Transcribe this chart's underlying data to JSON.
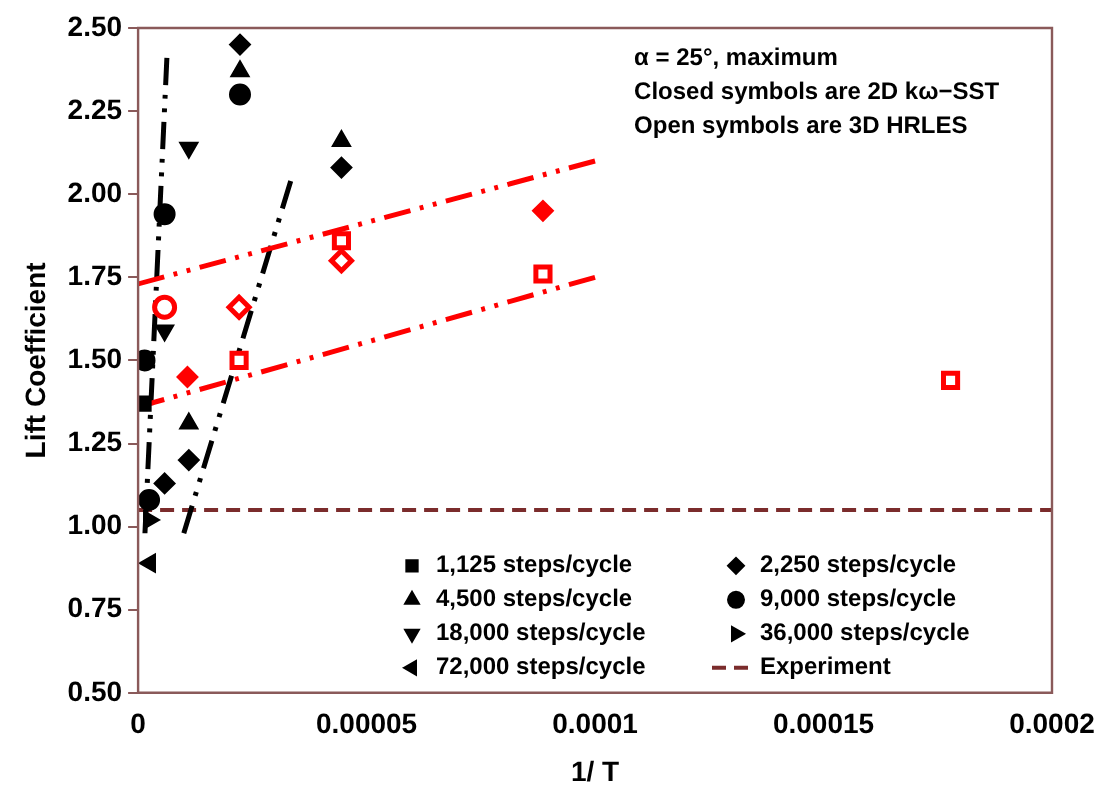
{
  "chart_data": {
    "type": "scatter",
    "xlabel": "1/ T",
    "ylabel": "Lift Coefficient",
    "xlim": [
      0,
      0.0002
    ],
    "xticks": [
      0,
      {
        "value": 5e-05,
        "label": "0.00005"
      },
      0.0001,
      0.00015,
      0.0002
    ],
    "ylim": [
      0.5,
      2.5
    ],
    "yticks": [
      {
        "value": 0.5,
        "label": "0.50"
      },
      {
        "value": 0.75,
        "label": "0.75"
      },
      {
        "value": 1,
        "label": "1.00"
      },
      {
        "value": 1.25,
        "label": "1.25"
      },
      {
        "value": 1.5,
        "label": "1.50"
      },
      {
        "value": 1.75,
        "label": "1.75"
      },
      {
        "value": 2,
        "label": "2.00"
      },
      {
        "value": 2.25,
        "label": "2.25"
      },
      {
        "value": 2.5,
        "label": "2.50"
      }
    ],
    "grid": false,
    "legend": "bottom right",
    "annotations": [
      "α = 25°, maximum",
      "Closed symbols are 2D kω−SST",
      "Open symbols are 3D HRLES"
    ],
    "series": [
      {
        "name": "1,125 steps/cycle",
        "color": "#000000",
        "marker": "square",
        "x": [
          1.2e-06
        ],
        "values": [
          1.37
        ]
      },
      {
        "name": "4,500 steps/cycle",
        "color": "#000000",
        "marker": "triangle",
        "x": [
          2.23e-05,
          4.45e-05,
          1.11e-05
        ],
        "values": [
          2.37,
          2.16,
          1.31
        ]
      },
      {
        "name": "18,000 steps/cycle",
        "color": "#000000",
        "marker": "triangle-down",
        "x": [
          1.11e-05,
          5.8e-06
        ],
        "values": [
          2.14,
          1.59
        ]
      },
      {
        "name": "72,000 steps/cycle",
        "color": "#000000",
        "marker": "triangle-left",
        "x": [
          2.6e-06
        ],
        "values": [
          0.89
        ]
      },
      {
        "name": "2,250 steps/cycle",
        "color": "#000000",
        "marker": "diamond",
        "x": [
          2.23e-05,
          4.45e-05,
          1.11e-05,
          5.8e-06
        ],
        "values": [
          2.45,
          2.08,
          1.2,
          1.13
        ]
      },
      {
        "name": "9,000 steps/cycle",
        "color": "#000000",
        "marker": "circle",
        "x": [
          2.23e-05,
          5.8e-06,
          1.4e-06,
          2.4e-06
        ],
        "values": [
          2.3,
          1.94,
          1.5,
          1.08
        ]
      },
      {
        "name": "36,000 steps/cycle",
        "color": "#000000",
        "marker": "triangle-right",
        "x": [
          2.4e-06
        ],
        "values": [
          1.02
        ]
      },
      {
        "color": "#ff0000",
        "marker": "square-open",
        "x": [
          4.45e-05,
          2.21e-05,
          8.86e-05,
          0.0001778
        ],
        "values": [
          1.86,
          1.5,
          1.76,
          1.44
        ]
      },
      {
        "color": "#ff0000",
        "marker": "diamond-open",
        "x": [
          4.45e-05,
          2.21e-05
        ],
        "values": [
          1.8,
          1.66
        ]
      },
      {
        "color": "#ff0000",
        "marker": "circle-open",
        "x": [
          5.8e-06
        ],
        "values": [
          1.66
        ]
      },
      {
        "color": "#ff0000",
        "marker": "diamond",
        "x": [
          1.08e-05,
          8.86e-05
        ],
        "values": [
          1.45,
          1.95
        ]
      },
      {
        "type": "line",
        "color": "#ff0000",
        "line_style": "dashed",
        "marker": "none",
        "x": [
          0,
          0.0001
        ],
        "values": [
          1.73,
          2.1
        ]
      },
      {
        "type": "line",
        "color": "#ff0000",
        "line_style": "dashed",
        "marker": "none",
        "x": [
          0,
          0.0001
        ],
        "values": [
          1.36,
          1.75
        ]
      },
      {
        "type": "line",
        "color": "#000000",
        "line_style": "dashed",
        "marker": "none",
        "x": [
          1.5e-06,
          6.3e-06
        ],
        "values": [
          0.98,
          2.41
        ]
      },
      {
        "type": "line",
        "color": "#000000",
        "line_style": "dashed",
        "marker": "none",
        "x": [
          1e-05,
          3.34e-05
        ],
        "values": [
          0.98,
          2.04
        ]
      }
    ],
    "ref_lines": [
      {
        "axis": "y",
        "value": 1.05,
        "label": "Experiment",
        "color": "#7b2c2c",
        "line_style": "dashed"
      }
    ]
  }
}
